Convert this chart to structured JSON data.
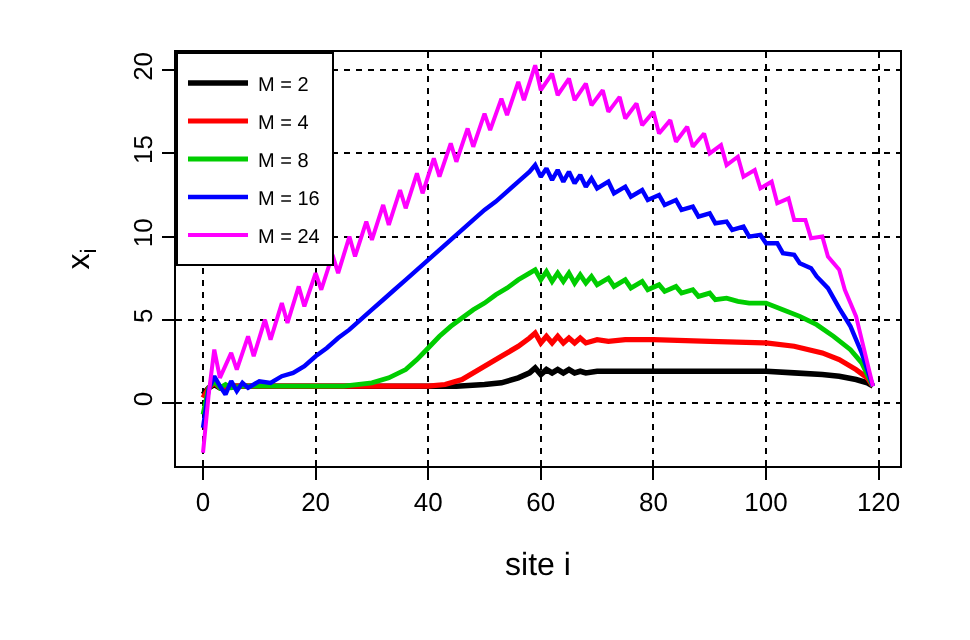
{
  "chart_data": {
    "type": "line",
    "xlabel": "site i",
    "ylabel": "x$_{i}$",
    "xlim": [
      -4.8,
      123.8
    ],
    "ylim": [
      -3.8,
      21.1
    ],
    "xticks": [
      0,
      20,
      40,
      60,
      80,
      100,
      120
    ],
    "yticks": [
      0,
      5,
      10,
      15,
      20
    ],
    "grid": true,
    "legend": "top left",
    "line_style": "solid",
    "marker": "none",
    "series": [
      {
        "name": "M = 2",
        "color": "#000000",
        "x": [
          0,
          1,
          2,
          3,
          5,
          10,
          20,
          30,
          40,
          45,
          50,
          53,
          56,
          58,
          59,
          60,
          61,
          62,
          63,
          64,
          65,
          66,
          67,
          68,
          70,
          80,
          90,
          100,
          105,
          110,
          113,
          116,
          118,
          119
        ],
        "values": [
          0.5,
          0.9,
          1.1,
          0.9,
          1.0,
          1.0,
          1.0,
          1.0,
          1.0,
          1.0,
          1.1,
          1.2,
          1.5,
          1.8,
          2.1,
          1.7,
          2.0,
          1.8,
          2.0,
          1.8,
          2.0,
          1.8,
          1.9,
          1.8,
          1.9,
          1.9,
          1.9,
          1.9,
          1.8,
          1.7,
          1.6,
          1.4,
          1.2,
          1.0
        ]
      },
      {
        "name": "M = 4",
        "color": "#ff0000",
        "x": [
          0,
          1,
          2,
          3,
          5,
          10,
          20,
          30,
          40,
          43,
          46,
          50,
          53,
          56,
          58,
          59,
          60,
          61,
          62,
          63,
          64,
          65,
          66,
          67,
          68,
          70,
          72,
          75,
          80,
          90,
          100,
          105,
          110,
          113,
          116,
          118,
          119
        ],
        "values": [
          0.3,
          0.9,
          1.2,
          0.9,
          1.0,
          1.0,
          1.0,
          1.0,
          1.0,
          1.1,
          1.4,
          2.2,
          2.8,
          3.4,
          3.9,
          4.2,
          3.6,
          4.0,
          3.6,
          4.0,
          3.6,
          3.9,
          3.6,
          3.9,
          3.6,
          3.8,
          3.7,
          3.8,
          3.8,
          3.7,
          3.6,
          3.4,
          3.0,
          2.6,
          2.0,
          1.5,
          1.0
        ]
      },
      {
        "name": "M = 8",
        "color": "#00cd00",
        "x": [
          0,
          1,
          2,
          3,
          4,
          5,
          7,
          10,
          20,
          25,
          30,
          33,
          36,
          38,
          40,
          42,
          44,
          46,
          48,
          50,
          52,
          54,
          56,
          58,
          59,
          60,
          61,
          62,
          63,
          64,
          65,
          66,
          67,
          68,
          69,
          70,
          72,
          73,
          75,
          76,
          78,
          79,
          81,
          82,
          84,
          85,
          87,
          88,
          90,
          91,
          93,
          95,
          97,
          100,
          103,
          106,
          109,
          112,
          115,
          117,
          119
        ],
        "values": [
          -0.7,
          0.9,
          1.3,
          0.9,
          1.1,
          0.9,
          1.0,
          1.0,
          1.0,
          1.0,
          1.2,
          1.5,
          2.0,
          2.6,
          3.3,
          4.0,
          4.6,
          5.1,
          5.6,
          6.0,
          6.5,
          6.9,
          7.4,
          7.8,
          8.0,
          7.4,
          7.9,
          7.3,
          7.8,
          7.3,
          7.8,
          7.2,
          7.7,
          7.2,
          7.6,
          7.1,
          7.5,
          7.0,
          7.4,
          6.9,
          7.3,
          6.8,
          7.1,
          6.7,
          7.0,
          6.6,
          6.8,
          6.4,
          6.6,
          6.2,
          6.3,
          6.1,
          6.0,
          6.0,
          5.6,
          5.2,
          4.7,
          4.0,
          3.2,
          2.4,
          1.0
        ]
      },
      {
        "name": "M = 16",
        "color": "#0000ff",
        "x": [
          0,
          1,
          2,
          3,
          4,
          5,
          6,
          7,
          8,
          10,
          12,
          14,
          16,
          18,
          20,
          22,
          24,
          26,
          28,
          30,
          32,
          34,
          36,
          38,
          40,
          42,
          44,
          46,
          48,
          50,
          52,
          54,
          56,
          58,
          59,
          60,
          61,
          62,
          63,
          64,
          65,
          66,
          67,
          68,
          69,
          70,
          72,
          73,
          75,
          76,
          78,
          79,
          81,
          82,
          84,
          85,
          87,
          88,
          90,
          91,
          93,
          94,
          96,
          97,
          99,
          100,
          102,
          103,
          105,
          106,
          108,
          109,
          111,
          113,
          115,
          117,
          119
        ],
        "values": [
          -1.5,
          0.8,
          1.6,
          1.0,
          0.5,
          1.3,
          0.7,
          1.2,
          0.9,
          1.3,
          1.2,
          1.6,
          1.8,
          2.2,
          2.8,
          3.3,
          3.9,
          4.4,
          5.0,
          5.6,
          6.2,
          6.8,
          7.4,
          8.0,
          8.6,
          9.2,
          9.8,
          10.4,
          11.0,
          11.6,
          12.1,
          12.7,
          13.3,
          13.9,
          14.3,
          13.6,
          14.1,
          13.4,
          14.0,
          13.3,
          13.9,
          13.2,
          13.7,
          13.0,
          13.5,
          12.9,
          13.3,
          12.6,
          13.0,
          12.4,
          12.8,
          12.2,
          12.5,
          11.9,
          12.2,
          11.6,
          11.8,
          11.2,
          11.4,
          10.8,
          10.9,
          10.4,
          10.6,
          10.0,
          10.1,
          9.6,
          9.6,
          9.0,
          8.9,
          8.4,
          8.1,
          7.6,
          6.9,
          5.7,
          4.6,
          3.0,
          1.0
        ]
      },
      {
        "name": "M = 24",
        "color": "#ff00ff",
        "x": [
          0,
          1,
          2,
          3,
          5,
          6,
          8,
          9,
          11,
          12,
          14,
          15,
          17,
          18,
          20,
          21,
          23,
          24,
          26,
          27,
          29,
          30,
          32,
          33,
          35,
          36,
          38,
          39,
          41,
          42,
          44,
          45,
          47,
          48,
          50,
          51,
          53,
          54,
          56,
          57,
          59,
          60,
          62,
          63,
          65,
          66,
          68,
          69,
          71,
          72,
          74,
          75,
          77,
          78,
          80,
          81,
          83,
          84,
          86,
          87,
          89,
          90,
          92,
          93,
          95,
          96,
          98,
          99,
          101,
          102,
          104,
          105,
          107,
          108,
          110,
          111,
          113,
          114,
          116,
          117,
          119
        ],
        "values": [
          -3.0,
          0.5,
          3.2,
          1.5,
          3.0,
          2.0,
          4.0,
          2.8,
          5.0,
          3.8,
          6.0,
          4.8,
          7.0,
          5.8,
          7.8,
          6.8,
          8.9,
          7.8,
          10.0,
          8.8,
          10.9,
          9.8,
          11.9,
          10.7,
          12.8,
          11.7,
          13.8,
          12.6,
          14.7,
          13.6,
          15.6,
          14.5,
          16.5,
          15.4,
          17.4,
          16.4,
          18.3,
          17.3,
          19.3,
          18.2,
          20.3,
          18.8,
          19.8,
          18.5,
          19.5,
          18.2,
          19.2,
          17.9,
          18.8,
          17.5,
          18.4,
          17.1,
          18.0,
          16.7,
          17.5,
          16.2,
          17.0,
          15.7,
          16.6,
          15.4,
          16.2,
          15.0,
          15.5,
          14.3,
          14.8,
          13.6,
          14.0,
          12.9,
          13.3,
          12.0,
          12.3,
          11.0,
          11.0,
          9.9,
          10.0,
          8.8,
          8.0,
          6.8,
          5.2,
          3.8,
          1.0
        ]
      }
    ]
  }
}
